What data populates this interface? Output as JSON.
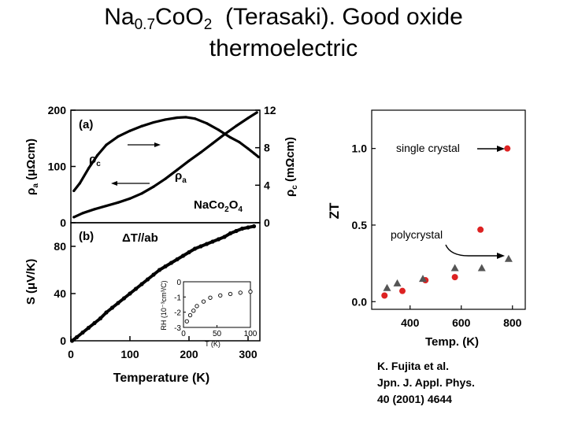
{
  "title": {
    "formula_na": "Na",
    "formula_na_sub": "0.7",
    "formula_co": "CoO",
    "formula_o_sub": "2",
    "rest_line1": "(Terasaki).  Good oxide",
    "line2": "thermoelectric"
  },
  "citation": {
    "line1": "K. Fujita et al.",
    "line2": "Jpn. J. Appl. Phys.",
    "line3": "40 (2001) 4644"
  },
  "colors": {
    "red": "#dd2222",
    "gray": "#555555",
    "black": "#000000"
  },
  "chart_data": [
    {
      "type": "line",
      "panel_label": "(a)",
      "title": "",
      "xlim": [
        0,
        320
      ],
      "left_axis": {
        "label_main": "ρ",
        "label_sub": "a",
        "label_unit": "(μΩcm)",
        "ylim": [
          0,
          200
        ],
        "ticks": [
          "0",
          "100",
          "200"
        ]
      },
      "right_axis": {
        "label_main": "ρ",
        "label_sub": "c",
        "label_unit": "(mΩcm)",
        "ylim": [
          0,
          12
        ],
        "ticks": [
          "0",
          "4",
          "8",
          "12"
        ]
      },
      "compound": {
        "p1": "NaCo",
        "s1": "2",
        "p2": "O",
        "s2": "4"
      },
      "series": [
        {
          "name": "ρa",
          "label_main": "ρ",
          "label_sub": "a",
          "axis": "left",
          "x": [
            5,
            20,
            40,
            60,
            80,
            100,
            120,
            140,
            160,
            180,
            200,
            220,
            240,
            260,
            280,
            300,
            315
          ],
          "y": [
            10,
            17,
            24,
            30,
            36,
            43,
            52,
            64,
            78,
            94,
            110,
            125,
            141,
            157,
            172,
            186,
            196
          ]
        },
        {
          "name": "ρc",
          "label_main": "ρ",
          "label_sub": "c",
          "axis": "right",
          "x": [
            5,
            15,
            30,
            45,
            60,
            80,
            100,
            120,
            140,
            160,
            180,
            195,
            210,
            230,
            250,
            270,
            285,
            300,
            310,
            318
          ],
          "y": [
            3.4,
            4.2,
            5.8,
            7.2,
            8.3,
            9.2,
            9.8,
            10.3,
            10.7,
            11.0,
            11.2,
            11.25,
            11.1,
            10.6,
            9.9,
            9.1,
            8.6,
            7.9,
            7.4,
            7.0
          ]
        }
      ]
    },
    {
      "type": "scatter",
      "panel_label": "(b)",
      "annotation": "ΔT//ab",
      "title": "",
      "xlabel": "Temperature (K)",
      "xlim": [
        0,
        320
      ],
      "xticks": [
        "0",
        "100",
        "200",
        "300"
      ],
      "ylabel_prefix": "S (",
      "ylabel_mu": "μ",
      "ylabel_suffix": "V/K)",
      "ylim": [
        0,
        100
      ],
      "yticks": [
        "0",
        "40",
        "80"
      ],
      "series": [
        {
          "name": "S",
          "x": [
            2,
            10,
            20,
            30,
            40,
            50,
            60,
            70,
            80,
            90,
            100,
            110,
            120,
            130,
            140,
            150,
            160,
            170,
            180,
            190,
            200,
            210,
            220,
            230,
            240,
            250,
            260,
            270,
            280,
            290,
            300,
            310
          ],
          "y": [
            0,
            3,
            7,
            11,
            15,
            19,
            24,
            28,
            32,
            36,
            40,
            44,
            48,
            52,
            56,
            60,
            63,
            66,
            69,
            72,
            75,
            78,
            80,
            82,
            84,
            86,
            88,
            91,
            93,
            95,
            96,
            97
          ]
        }
      ]
    },
    {
      "type": "scatter",
      "panel_label": "inset",
      "title": "",
      "xlabel": "T (K)",
      "ylabel": "RH (10⁻³cm³/C)",
      "xlim": [
        0,
        100
      ],
      "xticks": [
        "0",
        "50",
        "100"
      ],
      "ylim": [
        -3,
        0
      ],
      "yticks": [
        "0",
        "-1",
        "-2",
        "-3"
      ],
      "series": [
        {
          "name": "RH",
          "x": [
            5,
            10,
            15,
            20,
            30,
            40,
            55,
            70,
            85,
            100
          ],
          "y": [
            -2.6,
            -2.2,
            -1.9,
            -1.6,
            -1.3,
            -1.05,
            -0.9,
            -0.8,
            -0.72,
            -0.65
          ]
        }
      ]
    },
    {
      "type": "scatter",
      "title": "",
      "xlabel": "Temp. (K)",
      "ylabel": "ZT",
      "xlim": [
        250,
        850
      ],
      "xticks": [
        "400",
        "600",
        "800"
      ],
      "ylim": [
        -0.05,
        1.25
      ],
      "yticks": [
        "0.0",
        "0.5",
        "1.0"
      ],
      "annotations": {
        "single": "single crystal",
        "poly": "polycrystal"
      },
      "series": [
        {
          "name": "single crystal",
          "marker": "circle",
          "color": "#dd2222",
          "x": [
            300,
            370,
            460,
            575,
            675,
            780
          ],
          "y": [
            0.04,
            0.07,
            0.14,
            0.16,
            0.47,
            1.0
          ]
        },
        {
          "name": "polycrystal",
          "marker": "triangle",
          "color": "#555555",
          "x": [
            310,
            350,
            450,
            575,
            680,
            785
          ],
          "y": [
            0.09,
            0.12,
            0.15,
            0.22,
            0.22,
            0.28
          ]
        }
      ]
    }
  ]
}
